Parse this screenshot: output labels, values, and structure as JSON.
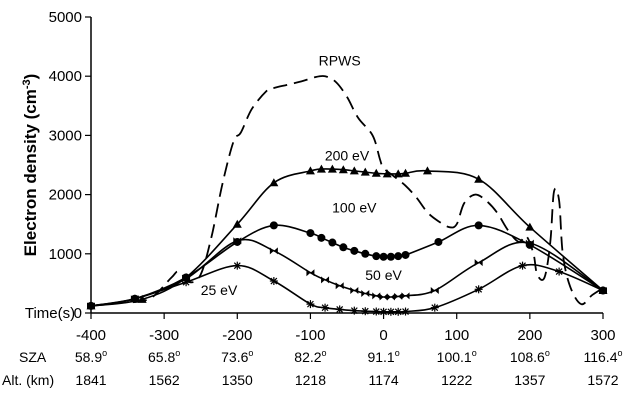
{
  "chart_data": {
    "type": "line",
    "ylabel_main": "Electron density (cm",
    "ylabel_sup": "-3",
    "ylabel_close": ")",
    "x_label": "Time(s)",
    "xlim": [
      -400,
      300
    ],
    "ylim": [
      0,
      5000
    ],
    "y_ticks": [
      "0",
      "1000",
      "2000",
      "3000",
      "4000",
      "5000"
    ],
    "x_ticks": [
      "-400",
      "-300",
      "-200",
      "-100",
      "0",
      "100",
      "200",
      "300"
    ],
    "x_tick_values": [
      -400,
      -300,
      -200,
      -100,
      0,
      100,
      200,
      300
    ],
    "sza": {
      "label": "SZA",
      "values": [
        "58.9",
        "65.8",
        "73.6",
        "82.2",
        "91.1",
        "100.1",
        "108.6",
        "116.4"
      ],
      "degree_symbol": "o"
    },
    "altitude": {
      "label": "Alt. (km)",
      "values": [
        "1841",
        "1562",
        "1350",
        "1218",
        "1174",
        "1222",
        "1357",
        "1572"
      ]
    },
    "series": [
      {
        "name": "RPWS",
        "style": "dashed",
        "marker": "none",
        "x": [
          -400,
          -360,
          -320,
          -290,
          -280,
          -265,
          -250,
          -235,
          -220,
          -205,
          -195,
          -180,
          -160,
          -150,
          -130,
          -110,
          -95,
          -80,
          -65,
          -50,
          -35,
          -15,
          -5,
          0,
          15,
          30,
          45,
          60,
          75,
          90,
          100,
          110,
          125,
          140,
          155,
          170,
          185,
          195,
          205,
          210,
          220,
          228,
          233,
          240,
          245,
          255,
          270,
          285,
          300
        ],
        "y": [
          120,
          170,
          240,
          600,
          700,
          520,
          650,
          1300,
          2200,
          2900,
          3050,
          3450,
          3750,
          3800,
          3860,
          3920,
          3980,
          4000,
          3900,
          3650,
          3300,
          3000,
          2600,
          2450,
          2300,
          2150,
          1950,
          1700,
          1550,
          1450,
          1500,
          1850,
          2000,
          1900,
          1700,
          1400,
          1200,
          1300,
          1000,
          650,
          600,
          1200,
          2050,
          1900,
          1000,
          450,
          150,
          300,
          420
        ]
      },
      {
        "name": "200 eV",
        "style": "solid",
        "marker": "triangle",
        "x": [
          -400,
          -330,
          -270,
          -200,
          -150,
          -100,
          -85,
          -70,
          -55,
          -40,
          -25,
          -10,
          5,
          20,
          30,
          60,
          130,
          200,
          300
        ],
        "y": [
          120,
          230,
          600,
          1500,
          2200,
          2400,
          2430,
          2430,
          2420,
          2400,
          2380,
          2360,
          2350,
          2350,
          2360,
          2400,
          2260,
          1450,
          380
        ]
      },
      {
        "name": "100 eV",
        "style": "solid",
        "marker": "circle",
        "x": [
          -400,
          -340,
          -270,
          -200,
          -150,
          -100,
          -85,
          -70,
          -55,
          -40,
          -25,
          -10,
          0,
          10,
          20,
          30,
          75,
          130,
          200,
          300
        ],
        "y": [
          120,
          240,
          600,
          1200,
          1480,
          1350,
          1270,
          1190,
          1110,
          1050,
          1000,
          960,
          950,
          950,
          960,
          980,
          1200,
          1480,
          1150,
          380
        ]
      },
      {
        "name": "50 eV",
        "style": "solid",
        "marker": "bowtie",
        "x": [
          -400,
          -340,
          -270,
          -200,
          -150,
          -100,
          -80,
          -60,
          -40,
          -25,
          -10,
          0,
          10,
          20,
          30,
          70,
          130,
          200,
          300
        ],
        "y": [
          120,
          240,
          580,
          1220,
          1050,
          680,
          560,
          460,
          380,
          330,
          290,
          270,
          270,
          280,
          290,
          380,
          850,
          1180,
          380
        ]
      },
      {
        "name": "25 eV",
        "style": "solid",
        "marker": "asterisk",
        "x": [
          -400,
          -340,
          -270,
          -200,
          -150,
          -100,
          -80,
          -60,
          -40,
          -25,
          -10,
          0,
          10,
          20,
          30,
          70,
          130,
          190,
          240,
          300
        ],
        "y": [
          120,
          240,
          520,
          800,
          540,
          150,
          90,
          60,
          40,
          30,
          25,
          20,
          20,
          20,
          25,
          90,
          400,
          800,
          700,
          380
        ]
      }
    ],
    "series_label_positions_data": {
      "RPWS": [
        -60,
        4180
      ],
      "200 eV": [
        -50,
        2580
      ],
      "100 eV": [
        -40,
        1700
      ],
      "50 eV": [
        0,
        560
      ],
      "25 eV": [
        -225,
        300
      ]
    },
    "grid": false,
    "legend": "none (inline labels)"
  }
}
